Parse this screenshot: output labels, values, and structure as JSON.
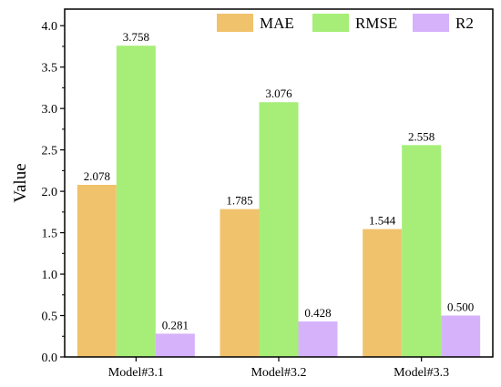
{
  "chart_data": {
    "type": "bar",
    "title": "",
    "xlabel": "",
    "ylabel": "Value",
    "ylim": [
      0,
      4.2
    ],
    "yticks": [
      "0.0",
      "0.5",
      "1.0",
      "1.5",
      "2.0",
      "2.5",
      "3.0",
      "3.5",
      "4.0"
    ],
    "categories": [
      "Model#3.1",
      "Model#3.2",
      "Model#3.3"
    ],
    "series": [
      {
        "name": "MAE",
        "color": "#f0c26c",
        "values": [
          2.078,
          1.785,
          1.544
        ],
        "labels": [
          "2.078",
          "1.785",
          "1.544"
        ]
      },
      {
        "name": "RMSE",
        "color": "#a6ee78",
        "values": [
          3.758,
          3.076,
          2.558
        ],
        "labels": [
          "3.758",
          "3.076",
          "2.558"
        ]
      },
      {
        "name": "R2",
        "color": "#d6b2fb",
        "values": [
          0.281,
          0.428,
          0.5
        ],
        "labels": [
          "0.281",
          "0.428",
          "0.500"
        ]
      }
    ],
    "legend": "top-right",
    "grid": false
  }
}
